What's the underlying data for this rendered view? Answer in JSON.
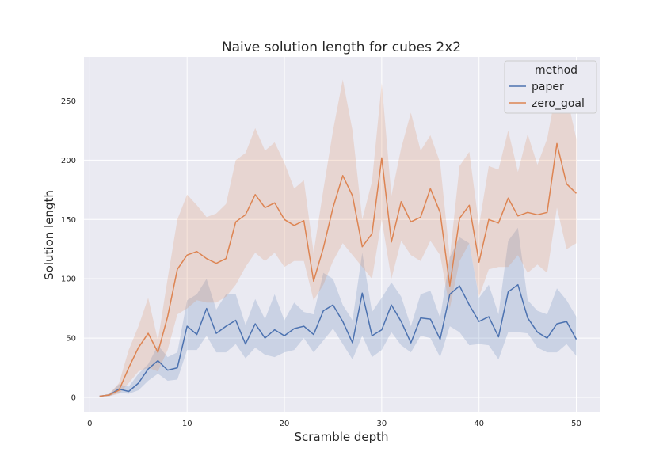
{
  "chart_data": {
    "type": "line",
    "title": "Naive solution length for cubes 2x2",
    "xlabel": "Scramble depth",
    "ylabel": "Solution length",
    "xlim": [
      -0.6,
      52.4
    ],
    "ylim": [
      -12,
      287
    ],
    "x_ticks": [
      0,
      10,
      20,
      30,
      40,
      50
    ],
    "y_ticks": [
      0,
      50,
      100,
      150,
      200,
      250
    ],
    "grid": true,
    "legend": {
      "title": "method",
      "placement": "top-right"
    },
    "x": [
      1,
      2,
      3,
      4,
      5,
      6,
      7,
      8,
      9,
      10,
      11,
      12,
      13,
      14,
      15,
      16,
      17,
      18,
      19,
      20,
      21,
      22,
      23,
      24,
      25,
      26,
      27,
      28,
      29,
      30,
      31,
      32,
      33,
      34,
      35,
      36,
      37,
      38,
      39,
      40,
      41,
      42,
      43,
      44,
      45,
      46,
      47,
      48,
      49,
      50
    ],
    "series": [
      {
        "name": "paper",
        "color": "#4c72b0",
        "values": [
          1,
          2,
          7,
          5,
          12,
          24,
          31,
          23,
          25,
          60,
          53,
          75,
          54,
          60,
          65,
          45,
          62,
          50,
          57,
          52,
          58,
          60,
          53,
          73,
          78,
          64,
          46,
          88,
          52,
          57,
          78,
          64,
          46,
          67,
          66,
          49,
          87,
          94,
          78,
          64,
          68,
          51,
          89,
          95,
          67,
          55,
          50,
          62,
          64,
          49
        ],
        "lower": [
          1,
          1,
          4,
          3,
          6,
          14,
          20,
          14,
          15,
          40,
          40,
          52,
          38,
          38,
          45,
          33,
          42,
          36,
          34,
          38,
          40,
          50,
          38,
          48,
          58,
          45,
          32,
          52,
          34,
          40,
          55,
          44,
          38,
          52,
          50,
          34,
          60,
          55,
          44,
          45,
          44,
          32,
          55,
          55,
          54,
          42,
          38,
          38,
          45,
          35
        ],
        "upper": [
          1,
          3,
          11,
          9,
          20,
          28,
          44,
          34,
          38,
          82,
          87,
          100,
          74,
          87,
          87,
          61,
          83,
          66,
          87,
          65,
          80,
          72,
          70,
          105,
          100,
          78,
          65,
          122,
          72,
          84,
          97,
          85,
          60,
          87,
          90,
          67,
          118,
          135,
          130,
          84,
          95,
          70,
          132,
          143,
          82,
          73,
          70,
          92,
          82,
          68
        ]
      },
      {
        "name": "zero_goal",
        "color": "#dd8452",
        "values": [
          1,
          2,
          6,
          25,
          42,
          54,
          38,
          68,
          108,
          120,
          123,
          117,
          113,
          117,
          148,
          154,
          171,
          160,
          164,
          150,
          145,
          149,
          98,
          126,
          160,
          187,
          170,
          127,
          138,
          202,
          131,
          165,
          148,
          152,
          176,
          156,
          94,
          151,
          162,
          114,
          150,
          147,
          168,
          153,
          156,
          154,
          156,
          214,
          180,
          172
        ],
        "lower": [
          1,
          1,
          3,
          12,
          22,
          25,
          22,
          40,
          70,
          75,
          82,
          80,
          80,
          85,
          95,
          110,
          122,
          115,
          122,
          110,
          115,
          115,
          82,
          95,
          115,
          130,
          120,
          110,
          100,
          150,
          100,
          132,
          120,
          115,
          132,
          120,
          75,
          115,
          130,
          85,
          108,
          110,
          110,
          120,
          105,
          112,
          105,
          160,
          125,
          130
        ],
        "upper": [
          1,
          3,
          12,
          40,
          60,
          84,
          48,
          100,
          150,
          171,
          162,
          152,
          155,
          163,
          200,
          206,
          227,
          208,
          215,
          198,
          176,
          183,
          122,
          175,
          225,
          268,
          225,
          150,
          182,
          265,
          170,
          210,
          240,
          208,
          221,
          198,
          118,
          195,
          207,
          145,
          195,
          192,
          225,
          190,
          222,
          196,
          218,
          262,
          255,
          218
        ]
      }
    ]
  }
}
